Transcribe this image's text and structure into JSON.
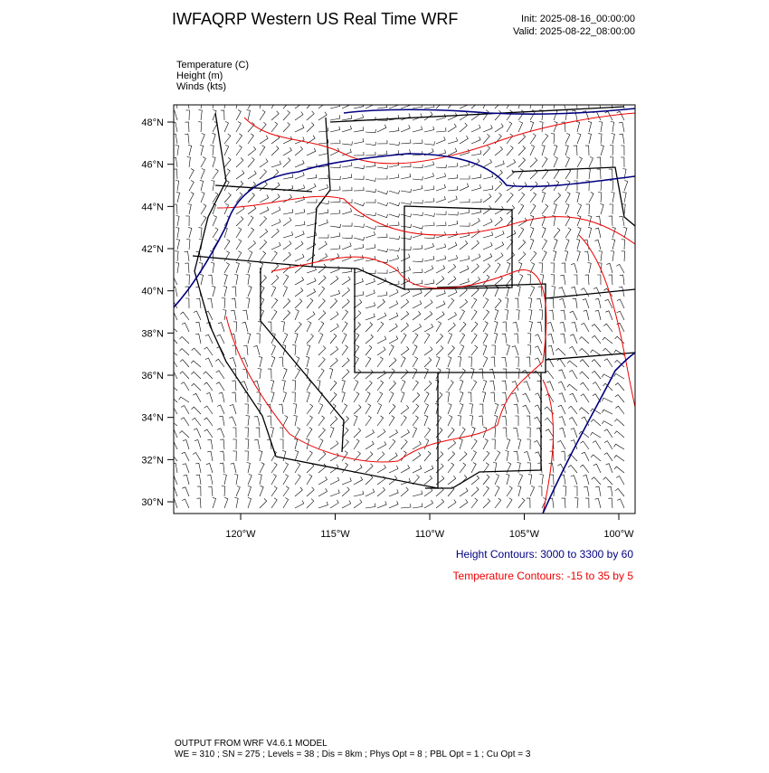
{
  "header": {
    "title": "IWFAQRP Western US Real Time WRF",
    "init": "Init: 2025-08-16_00:00:00",
    "valid": "Valid: 2025-08-22_08:00:00"
  },
  "fields": [
    "Temperature   (C)",
    "Height   (m)",
    "Winds   (kts)"
  ],
  "map": {
    "lat_labels": [
      "48°N",
      "46°N",
      "44°N",
      "42°N",
      "40°N",
      "38°N",
      "36°N",
      "34°N",
      "32°N",
      "30°N"
    ],
    "lon_labels": [
      "120°W",
      "115°W",
      "110°W",
      "105°W",
      "100°W"
    ]
  },
  "legend": {
    "height": "Height Contours: 3000 to 3300 by 60",
    "temperature": "Temperature Contours: -15 to 35 by 5"
  },
  "footer": {
    "line1": "OUTPUT FROM WRF V4.6.1 MODEL",
    "line2": "WE = 310 ; SN = 275 ; Levels = 38 ; Dis = 8km ; Phys Opt = 8 ; PBL Opt = 1 ; Cu Opt = 3"
  }
}
